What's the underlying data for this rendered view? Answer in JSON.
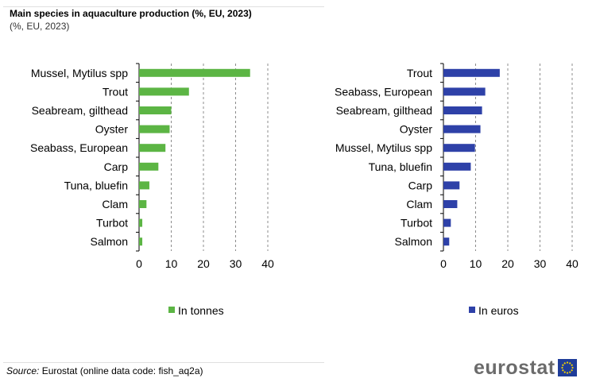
{
  "title": "Main species in aquaculture production  (%, EU, 2023)",
  "subtitle": "(%, EU, 2023)",
  "source_label": "Source:",
  "source_text": "Eurostat (online data code: fish_aq2a)",
  "logo_text": "eurostat",
  "chart_data": [
    {
      "type": "bar",
      "orientation": "horizontal",
      "categories": [
        "Mussel, Mytilus spp",
        "Trout",
        "Seabream, gilthead",
        "Oyster",
        "Seabass, European",
        "Carp",
        "Tuna, bluefin",
        "Clam",
        "Turbot",
        "Salmon"
      ],
      "series": [
        {
          "name": "In tonnes",
          "values": [
            34.5,
            15.5,
            10.0,
            9.5,
            8.2,
            6.0,
            3.2,
            2.3,
            1.0,
            1.0
          ]
        }
      ],
      "xlim": [
        0,
        40
      ],
      "xticks": [
        0,
        10,
        20,
        30,
        40
      ],
      "grid": true,
      "legend": "bottom",
      "color": "#5cb544"
    },
    {
      "type": "bar",
      "orientation": "horizontal",
      "categories": [
        "Trout",
        "Seabass, European",
        "Seabream, gilthead",
        "Oyster",
        "Mussel, Mytilus spp",
        "Tuna, bluefin",
        "Carp",
        "Clam",
        "Turbot",
        "Salmon"
      ],
      "series": [
        {
          "name": "In euros",
          "values": [
            17.5,
            13.0,
            12.0,
            11.5,
            9.8,
            8.5,
            5.0,
            4.3,
            2.3,
            1.8
          ]
        }
      ],
      "xlim": [
        0,
        40
      ],
      "xticks": [
        0,
        10,
        20,
        30,
        40
      ],
      "grid": true,
      "legend": "bottom",
      "color": "#2e41a8"
    }
  ]
}
